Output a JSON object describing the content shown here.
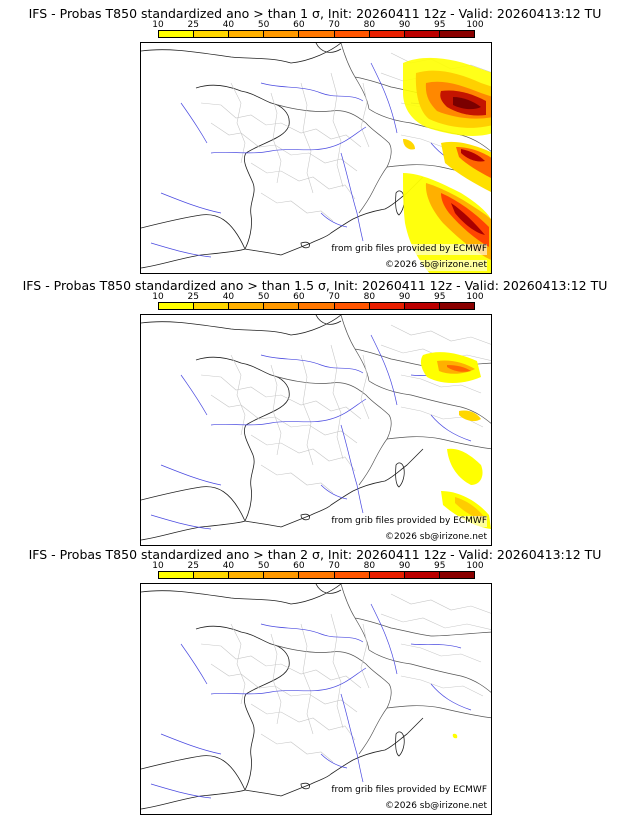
{
  "scale_labels": [
    "10",
    "25",
    "40",
    "50",
    "60",
    "70",
    "80",
    "90",
    "95",
    "100"
  ],
  "scale_colors": [
    "#ffff00",
    "#ffd700",
    "#ffb000",
    "#ff9900",
    "#ff7700",
    "#ff5500",
    "#e81f00",
    "#bb0000",
    "#8a0000"
  ],
  "credits": {
    "source": "from grib files provided by ECMWF",
    "copyright": "©2026 sb@irizone.net"
  },
  "panels": [
    {
      "title": "IFS - Probas T850  standardized ano > than 1 σ, Init: 20260411 12z - Valid: 20260413:12 TU",
      "threshold_sigma": 1
    },
    {
      "title": "IFS - Probas T850  standardized ano > than 1.5 σ, Init: 20260411 12z - Valid: 20260413:12 TU",
      "threshold_sigma": 1.5
    },
    {
      "title": "IFS - Probas T850  standardized ano > than 2 σ, Init: 20260411 12z - Valid: 20260413:12 TU",
      "threshold_sigma": 2
    }
  ]
}
